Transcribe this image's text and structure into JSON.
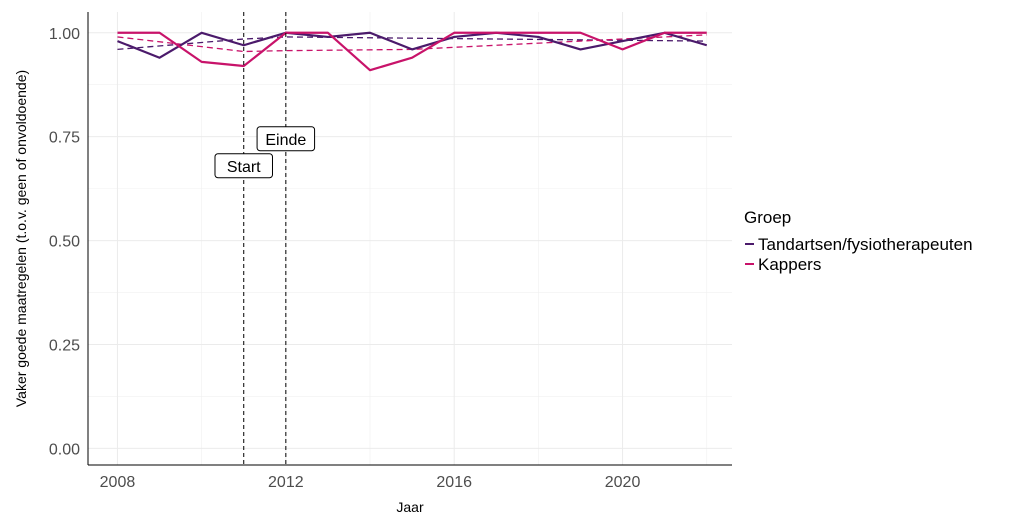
{
  "chart_data": {
    "type": "line",
    "xlabel": "Jaar",
    "ylabel": "Vaker goede maatregelen (t.o.v. geen of onvoldoende)",
    "xlim": [
      2007.3,
      2022.6
    ],
    "ylim": [
      -0.04,
      1.05
    ],
    "x_ticks": [
      2008,
      2012,
      2016,
      2020
    ],
    "x_tick_labels": [
      "2008",
      "2012",
      "2016",
      "2020"
    ],
    "y_ticks": [
      0,
      0.25,
      0.5,
      0.75,
      1.0
    ],
    "y_tick_labels": [
      "0.00",
      "0.25",
      "0.50",
      "0.75",
      "1.00"
    ],
    "grid": true,
    "legend": {
      "title": "Groep",
      "position": "right"
    },
    "x": [
      2008,
      2009,
      2010,
      2011,
      2012,
      2013,
      2014,
      2015,
      2016,
      2017,
      2018,
      2019,
      2020,
      2021,
      2022
    ],
    "series": [
      {
        "name": "Tandartsen/fysiotherapeuten",
        "color": "#4b1a6b",
        "values": [
          0.98,
          0.94,
          1.0,
          0.97,
          1.0,
          0.99,
          1.0,
          0.96,
          0.99,
          1.0,
          0.99,
          0.96,
          0.98,
          1.0,
          0.97
        ],
        "trend": {
          "x": [
            2008,
            2011,
            2012,
            2022
          ],
          "y": [
            0.96,
            0.985,
            0.99,
            0.98
          ]
        }
      },
      {
        "name": "Kappers",
        "color": "#c8136a",
        "values": [
          1.0,
          1.0,
          0.93,
          0.92,
          1.0,
          1.0,
          0.91,
          0.94,
          1.0,
          1.0,
          1.0,
          1.0,
          0.96,
          1.0,
          1.0
        ],
        "trend": {
          "x": [
            2008,
            2011,
            2012,
            2015,
            2022
          ],
          "y": [
            0.99,
            0.955,
            0.957,
            0.96,
            0.995
          ]
        }
      }
    ],
    "vlines": [
      2011,
      2012
    ],
    "annotations": [
      {
        "text": "Start",
        "x": 2011,
        "y": 0.68
      },
      {
        "text": "Einde",
        "x": 2012,
        "y": 0.745
      }
    ]
  }
}
